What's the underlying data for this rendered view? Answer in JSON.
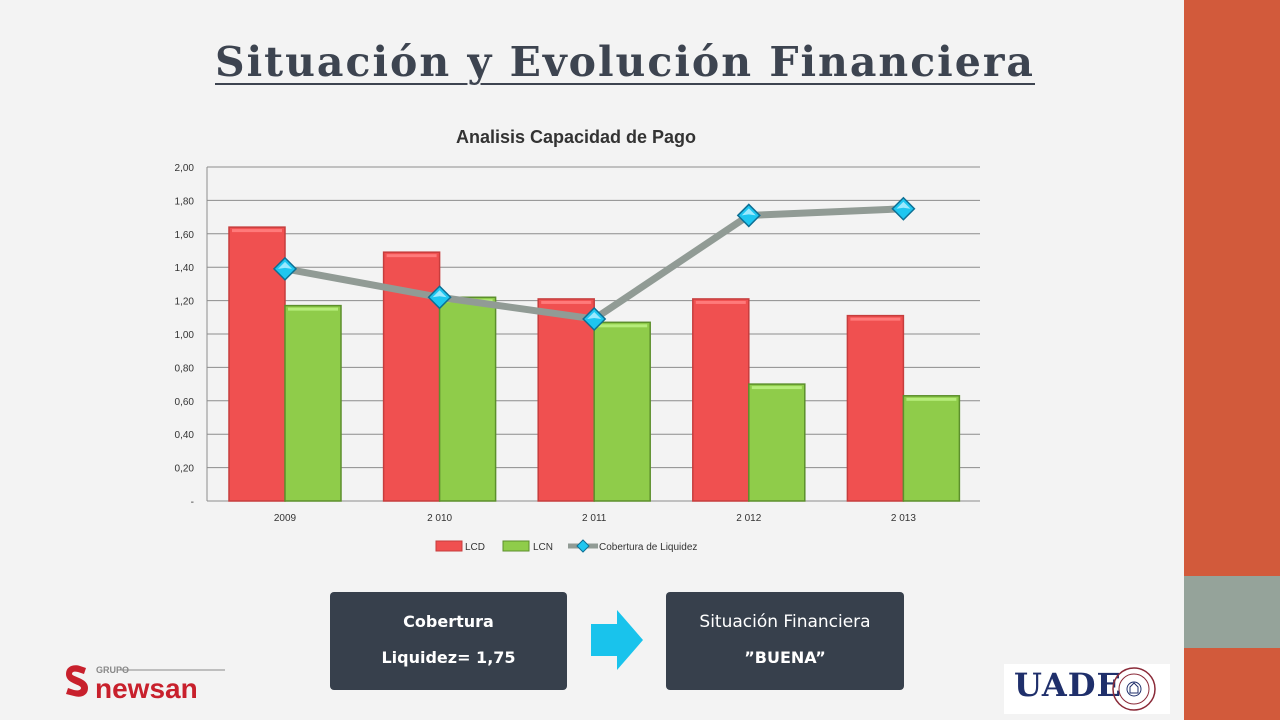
{
  "slide": {
    "title": "Situación y Evolución Financiera"
  },
  "colors": {
    "background": "#f3f3f3",
    "band_top": "#d25a3b",
    "band_middle": "#95a39a",
    "band_bottom": "#d25a3b",
    "lcd": "#f05050",
    "lcn": "#8fcc4a",
    "cobertura_line": "#919b95",
    "cobertura_marker": "#1ec6f0",
    "box_bg": "#37404c",
    "arrow": "#19c3ec"
  },
  "chart_data": {
    "type": "bar",
    "title": "Analisis Capacidad de Pago",
    "categories": [
      "2009",
      "2 010",
      "2 011",
      "2 012",
      "2 013"
    ],
    "series": [
      {
        "name": "LCD",
        "type": "bar",
        "values": [
          1.64,
          1.49,
          1.21,
          1.21,
          1.11
        ]
      },
      {
        "name": "LCN",
        "type": "bar",
        "values": [
          1.17,
          1.22,
          1.07,
          0.7,
          0.63
        ]
      },
      {
        "name": "Cobertura de Liquidez",
        "type": "line",
        "values": [
          1.39,
          1.22,
          1.09,
          1.71,
          1.75
        ]
      }
    ],
    "ylim": [
      0,
      2.0
    ],
    "yticks": [
      0,
      0.2,
      0.4,
      0.6,
      0.8,
      1.0,
      1.2,
      1.4,
      1.6,
      1.8,
      2.0
    ],
    "ytick_labels": [
      "-",
      "0,20",
      "0,40",
      "0,60",
      "0,80",
      "1,00",
      "1,20",
      "1,40",
      "1,60",
      "1,80",
      "2,00"
    ],
    "grid": true,
    "legend_position": "bottom"
  },
  "boxes": {
    "left": {
      "line1": "Cobertura",
      "line2": "Liquidez= 1,75"
    },
    "right": {
      "line1": "Situación Financiera",
      "line2": "”BUENA”"
    }
  },
  "logos": {
    "newsan_small": "GRUPO",
    "newsan_main": "newsan",
    "uade": "UADE"
  },
  "icons": {
    "arrow": "arrow-right-icon",
    "newsan_mark": "newsan-s-logo-icon",
    "uade_seal": "university-seal-icon"
  }
}
